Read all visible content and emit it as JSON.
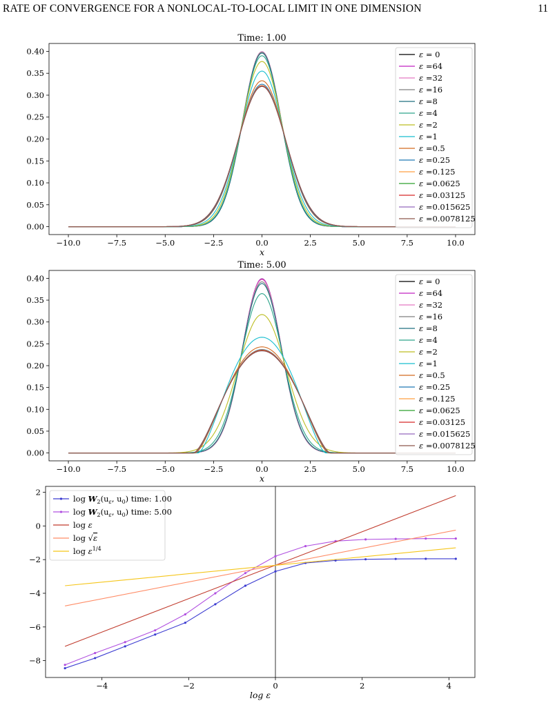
{
  "page": {
    "running_title": "RATE OF CONVERGENCE FOR A NONLOCAL-TO-LOCAL LIMIT IN ONE DIMENSION",
    "page_number": "11"
  },
  "chart_data": [
    {
      "type": "line",
      "title": "Time: 1.00",
      "xlabel": "x",
      "ylabel": "",
      "xlim": [
        -11.0,
        11.0
      ],
      "ylim": [
        -0.018,
        0.418
      ],
      "x_ticks": [
        -10.0,
        -7.5,
        -5.0,
        -2.5,
        0.0,
        2.5,
        5.0,
        7.5,
        10.0
      ],
      "x_tick_labels": [
        "−10.0",
        "−7.5",
        "−5.0",
        "−2.5",
        "0.0",
        "2.5",
        "5.0",
        "7.5",
        "10.0"
      ],
      "y_ticks": [
        0.0,
        0.05,
        0.1,
        0.15,
        0.2,
        0.25,
        0.3,
        0.35,
        0.4
      ],
      "y_tick_labels": [
        "0.00",
        "0.05",
        "0.10",
        "0.15",
        "0.20",
        "0.25",
        "0.30",
        "0.35",
        "0.40"
      ],
      "grid": false,
      "legend_position": "top-right",
      "legend_prefix": "ε",
      "series": [
        {
          "name": "= 0",
          "color": "#000000",
          "peak": 0.399,
          "sigma": 1.0,
          "support": null
        },
        {
          "name": "=64",
          "color": "#c020c0",
          "peak": 0.399,
          "sigma": 1.0,
          "support": null
        },
        {
          "name": "=32",
          "color": "#e377c2",
          "peak": 0.399,
          "sigma": 1.0,
          "support": null
        },
        {
          "name": "=16",
          "color": "#7f7f7f",
          "peak": 0.398,
          "sigma": 1.0,
          "support": null
        },
        {
          "name": "=8",
          "color": "#1f6f7f",
          "peak": 0.396,
          "sigma": 1.0,
          "support": null
        },
        {
          "name": "=4",
          "color": "#2ca58a",
          "peak": 0.39,
          "sigma": 1.02,
          "support": null
        },
        {
          "name": "=2",
          "color": "#bcbd22",
          "peak": 0.377,
          "sigma": 1.06,
          "support": null
        },
        {
          "name": "=1",
          "color": "#17becf",
          "peak": 0.355,
          "sigma": 1.12,
          "support": null
        },
        {
          "name": "=0.5",
          "color": "#d2691e",
          "peak": 0.333,
          "sigma": 1.2,
          "support": null
        },
        {
          "name": "=0.25",
          "color": "#1f77b4",
          "peak": 0.325,
          "sigma": 1.22,
          "support": null
        },
        {
          "name": "=0.125",
          "color": "#ff9f40",
          "peak": 0.322,
          "sigma": 1.24,
          "support": null
        },
        {
          "name": "=0.0625",
          "color": "#2ca02c",
          "peak": 0.321,
          "sigma": 1.24,
          "support": null
        },
        {
          "name": "=0.03125",
          "color": "#d62728",
          "peak": 0.321,
          "sigma": 1.24,
          "support": null
        },
        {
          "name": "=0.015625",
          "color": "#9467bd",
          "peak": 0.32,
          "sigma": 1.245,
          "support": null
        },
        {
          "name": "=0.0078125",
          "color": "#8c564b",
          "peak": 0.32,
          "sigma": 1.245,
          "support": null
        }
      ]
    },
    {
      "type": "line",
      "title": "Time: 5.00",
      "xlabel": "x",
      "ylabel": "",
      "xlim": [
        -11.0,
        11.0
      ],
      "ylim": [
        -0.018,
        0.418
      ],
      "x_ticks": [
        -10.0,
        -7.5,
        -5.0,
        -2.5,
        0.0,
        2.5,
        5.0,
        7.5,
        10.0
      ],
      "x_tick_labels": [
        "−10.0",
        "−7.5",
        "−5.0",
        "−2.5",
        "0.0",
        "2.5",
        "5.0",
        "7.5",
        "10.0"
      ],
      "y_ticks": [
        0.0,
        0.05,
        0.1,
        0.15,
        0.2,
        0.25,
        0.3,
        0.35,
        0.4
      ],
      "y_tick_labels": [
        "0.00",
        "0.05",
        "0.10",
        "0.15",
        "0.20",
        "0.25",
        "0.30",
        "0.35",
        "0.40"
      ],
      "grid": false,
      "legend_position": "top-right",
      "legend_prefix": "ε",
      "series": [
        {
          "name": "= 0",
          "color": "#000000",
          "peak": 0.399,
          "sigma": 1.0,
          "support": null
        },
        {
          "name": "=64",
          "color": "#c020c0",
          "peak": 0.399,
          "sigma": 1.0,
          "support": null
        },
        {
          "name": "=32",
          "color": "#e377c2",
          "peak": 0.397,
          "sigma": 1.0,
          "support": null
        },
        {
          "name": "=16",
          "color": "#7f7f7f",
          "peak": 0.392,
          "sigma": 1.01,
          "support": null
        },
        {
          "name": "=8",
          "color": "#1f6f7f",
          "peak": 0.388,
          "sigma": 1.02,
          "support": null
        },
        {
          "name": "=4",
          "color": "#2ca58a",
          "peak": 0.365,
          "sigma": 1.08,
          "support": null
        },
        {
          "name": "=2",
          "color": "#bcbd22",
          "peak": 0.317,
          "sigma": 1.25,
          "support": null
        },
        {
          "name": "=1",
          "color": "#17becf",
          "peak": 0.265,
          "sigma": null,
          "support": 3.3
        },
        {
          "name": "=0.5",
          "color": "#d2691e",
          "peak": 0.243,
          "sigma": null,
          "support": 3.45
        },
        {
          "name": "=0.25",
          "color": "#1f77b4",
          "peak": 0.237,
          "sigma": null,
          "support": 3.5
        },
        {
          "name": "=0.125",
          "color": "#ff9f40",
          "peak": 0.236,
          "sigma": null,
          "support": 3.52
        },
        {
          "name": "=0.0625",
          "color": "#2ca02c",
          "peak": 0.235,
          "sigma": null,
          "support": 3.53
        },
        {
          "name": "=0.03125",
          "color": "#d62728",
          "peak": 0.235,
          "sigma": null,
          "support": 3.53
        },
        {
          "name": "=0.015625",
          "color": "#9467bd",
          "peak": 0.234,
          "sigma": null,
          "support": 3.54
        },
        {
          "name": "=0.0078125",
          "color": "#8c564b",
          "peak": 0.234,
          "sigma": null,
          "support": 3.54
        }
      ]
    },
    {
      "type": "line",
      "title": "",
      "xlabel": "log ε",
      "ylabel": "",
      "xlim": [
        -5.3,
        4.6
      ],
      "ylim": [
        -9.0,
        2.35
      ],
      "x_ticks": [
        -4,
        -2,
        0,
        2,
        4
      ],
      "x_tick_labels": [
        "−4",
        "−2",
        "0",
        "2",
        "4"
      ],
      "y_ticks": [
        -8,
        -6,
        -4,
        -2,
        0,
        2
      ],
      "y_tick_labels": [
        "−8",
        "−6",
        "−4",
        "−2",
        "0",
        "2"
      ],
      "grid": false,
      "vertical_line_at": 0,
      "legend_position": "top-left",
      "series": [
        {
          "name": "log W2(uε, u0) time: 1.00",
          "legend": {
            "pre": "log ",
            "W": "W",
            "sub1": "2",
            "args": "(u",
            "sub2": "ε",
            "mid": ", u",
            "sub3": "0",
            "post": ") time: 1.00"
          },
          "color": "#3b3bd1",
          "markers": true,
          "x": [
            -4.852,
            -4.159,
            -3.466,
            -2.773,
            -2.079,
            -1.386,
            -0.693,
            0.0,
            0.693,
            1.386,
            2.079,
            2.773,
            3.466,
            4.159
          ],
          "y": [
            -8.45,
            -7.85,
            -7.15,
            -6.45,
            -5.75,
            -4.65,
            -3.55,
            -2.7,
            -2.2,
            -2.05,
            -1.98,
            -1.96,
            -1.95,
            -1.95
          ]
        },
        {
          "name": "log W2(uε, u0) time: 5.00",
          "legend": {
            "pre": "log ",
            "W": "W",
            "sub1": "2",
            "args": "(u",
            "sub2": "ε",
            "mid": ", u",
            "sub3": "0",
            "post": ") time: 5.00"
          },
          "color": "#b04fe0",
          "markers": true,
          "x": [
            -4.852,
            -4.159,
            -3.466,
            -2.773,
            -2.079,
            -1.386,
            -0.693,
            0.0,
            0.693,
            1.386,
            2.079,
            2.773,
            3.466,
            4.159
          ],
          "y": [
            -8.25,
            -7.55,
            -6.9,
            -6.2,
            -5.25,
            -4.0,
            -2.8,
            -1.8,
            -1.2,
            -0.9,
            -0.8,
            -0.77,
            -0.75,
            -0.75
          ]
        },
        {
          "name": "log ε",
          "color": "#c0392b",
          "markers": false,
          "x": [
            -4.852,
            4.159
          ],
          "y": [
            -7.15,
            1.8
          ]
        },
        {
          "name": "log √ε",
          "color": "#ff8c66",
          "markers": false,
          "x": [
            -4.852,
            4.159
          ],
          "y": [
            -4.75,
            -0.25
          ]
        },
        {
          "name": "log ε^1/4",
          "color": "#f5c518",
          "markers": false,
          "x": [
            -4.852,
            4.159
          ],
          "y": [
            -3.55,
            -1.3
          ]
        }
      ]
    }
  ]
}
